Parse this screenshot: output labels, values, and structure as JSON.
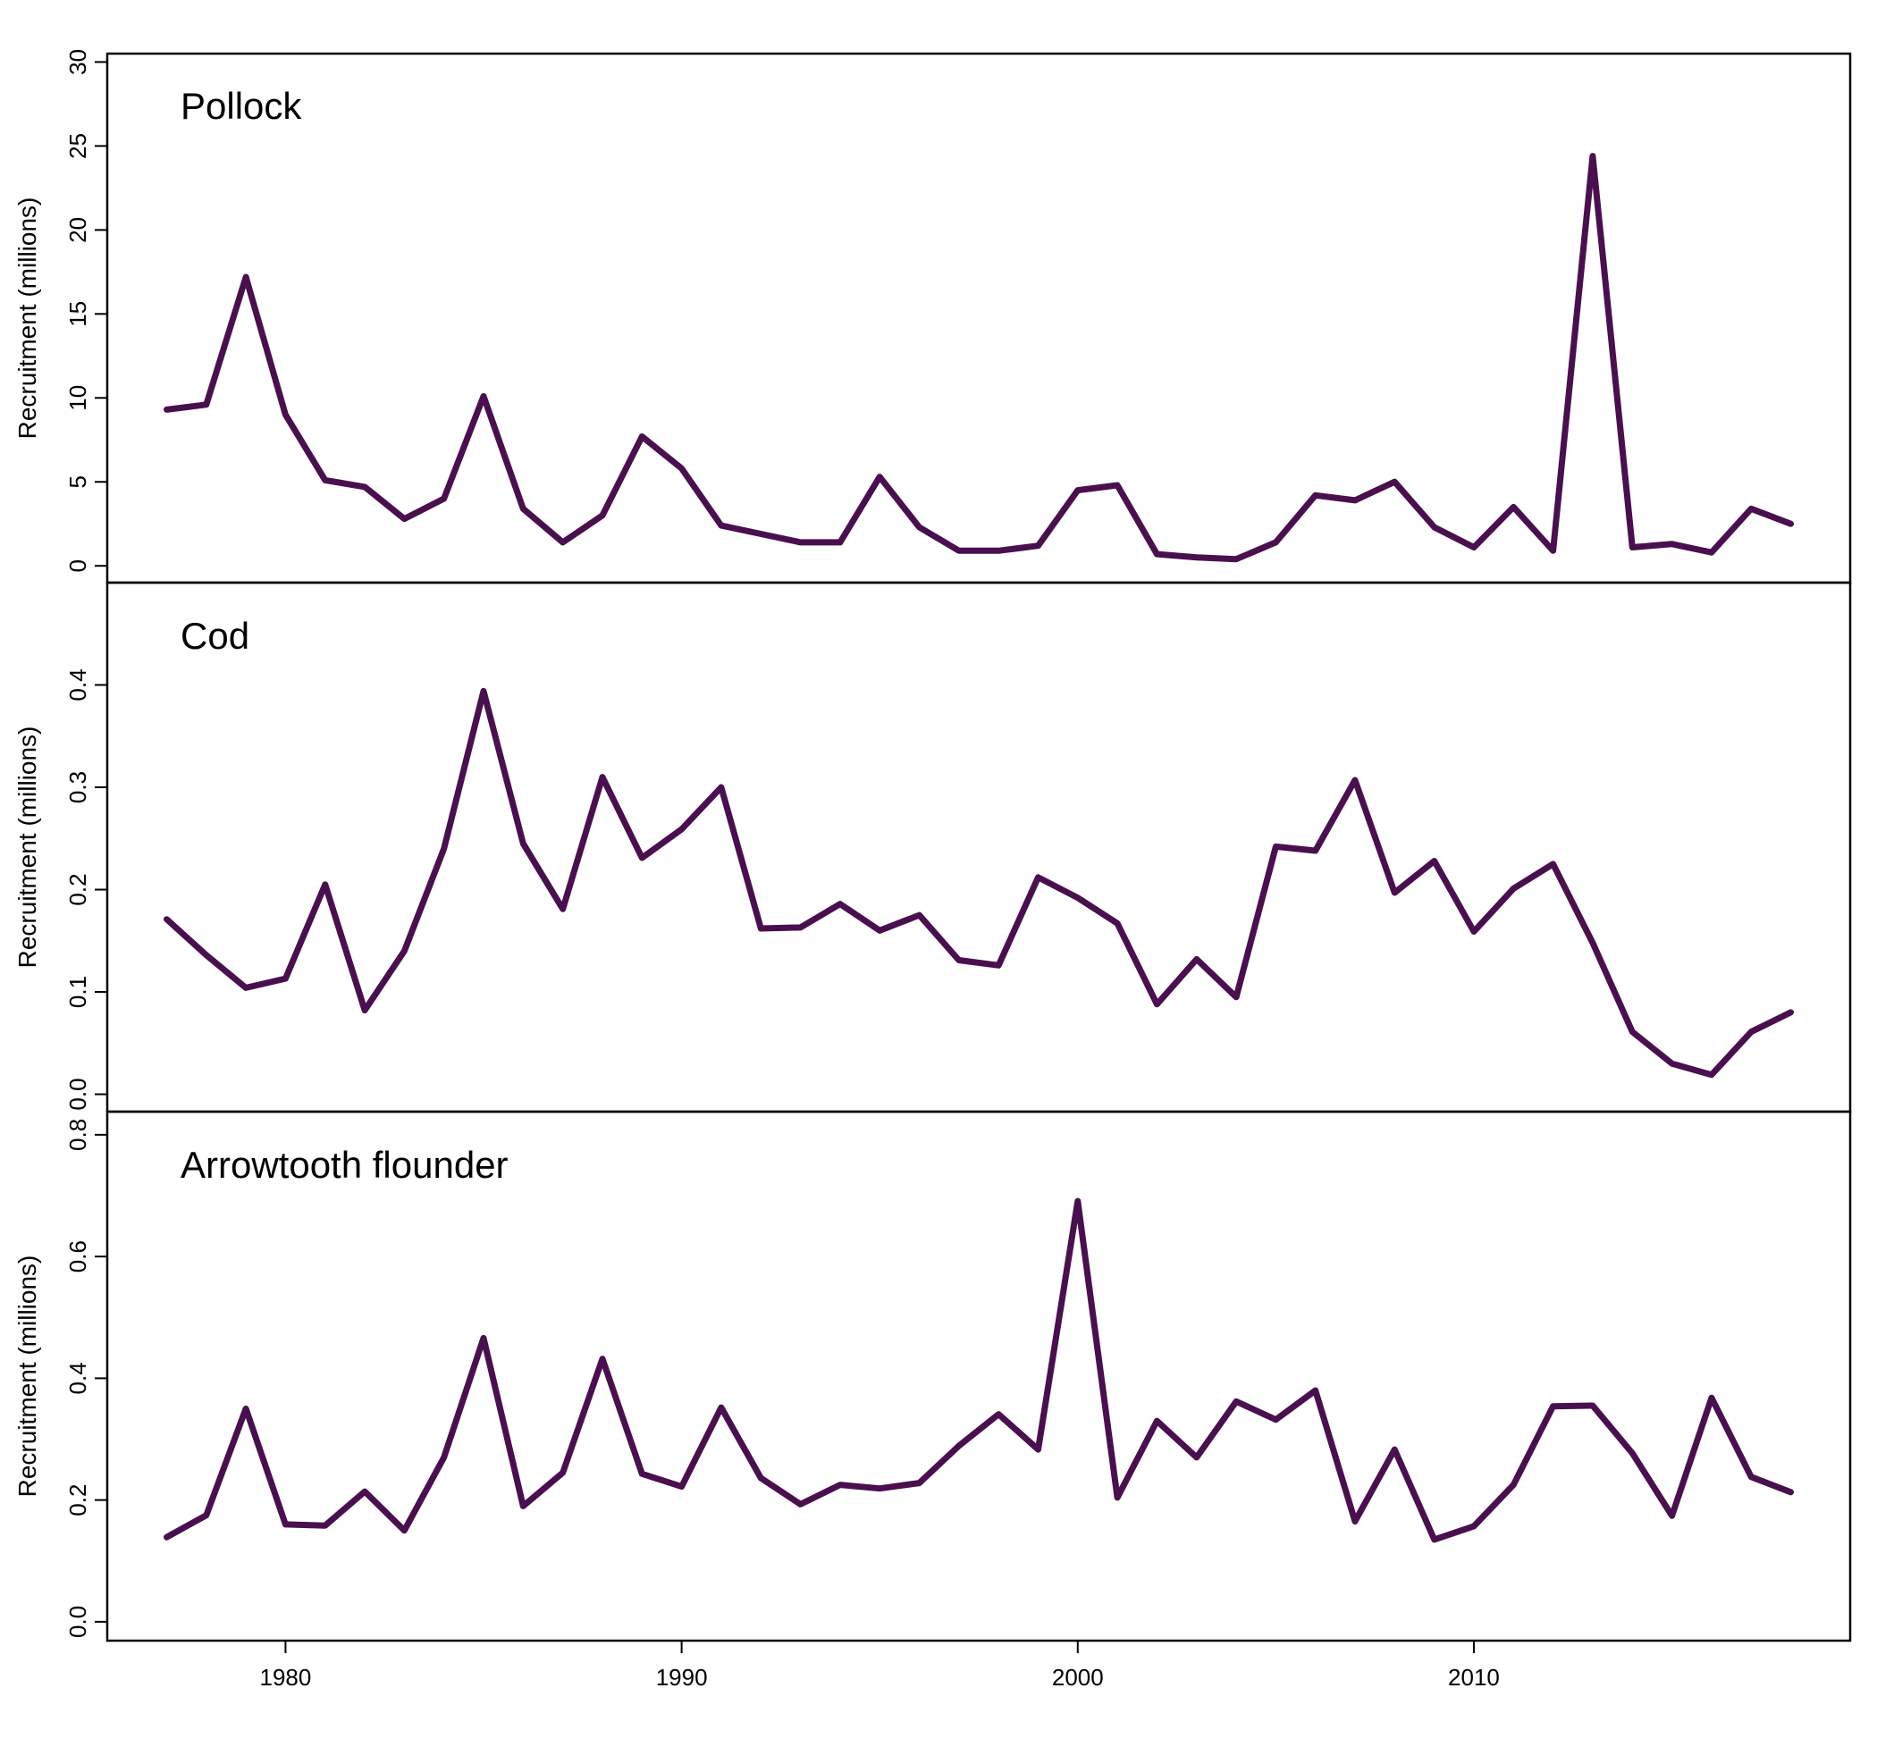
{
  "chart_data": [
    {
      "type": "line",
      "title": "Pollock",
      "ylabel": "Recruitment (millions)",
      "xlabel": "",
      "ylim": [
        -1,
        30.5
      ],
      "yticks": [
        0,
        5,
        10,
        15,
        20,
        25,
        30
      ],
      "xticks": [
        1980,
        1990,
        2000,
        2010
      ],
      "xlim": [
        1975.5,
        2019.5
      ],
      "color": "#4a0f4f",
      "x": [
        1977,
        1978,
        1979,
        1980,
        1981,
        1982,
        1983,
        1984,
        1985,
        1986,
        1987,
        1988,
        1989,
        1990,
        1991,
        1992,
        1993,
        1994,
        1995,
        1996,
        1997,
        1998,
        1999,
        2000,
        2001,
        2002,
        2003,
        2004,
        2005,
        2006,
        2007,
        2008,
        2009,
        2010,
        2011,
        2012,
        2013,
        2014,
        2015,
        2016,
        2017,
        2018
      ],
      "values": [
        9.3,
        9.6,
        17.2,
        9.0,
        5.1,
        4.7,
        2.8,
        4.0,
        10.1,
        3.4,
        1.4,
        3.0,
        7.7,
        5.8,
        2.4,
        1.9,
        1.4,
        1.4,
        5.3,
        2.3,
        0.9,
        0.9,
        1.2,
        4.5,
        4.8,
        0.7,
        0.5,
        0.4,
        1.4,
        4.2,
        3.9,
        5.0,
        2.3,
        1.1,
        3.5,
        0.9,
        24.4,
        1.1,
        1.3,
        0.8,
        3.4,
        2.5
      ]
    },
    {
      "type": "line",
      "title": "Cod",
      "ylabel": "Recruitment (millions)",
      "xlabel": "",
      "ylim": [
        -0.017,
        0.5
      ],
      "yticks": [
        0.0,
        0.1,
        0.2,
        0.3,
        0.4
      ],
      "ytick_labels": [
        "0.0",
        "0.1",
        "0.2",
        "0.3",
        "0.4"
      ],
      "xticks": [
        1980,
        1990,
        2000,
        2010
      ],
      "xlim": [
        1975.5,
        2019.5
      ],
      "color": "#4a0f4f",
      "x": [
        1977,
        1978,
        1979,
        1980,
        1981,
        1982,
        1983,
        1984,
        1985,
        1986,
        1987,
        1988,
        1989,
        1990,
        1991,
        1992,
        1993,
        1994,
        1995,
        1996,
        1997,
        1998,
        1999,
        2000,
        2001,
        2002,
        2003,
        2004,
        2005,
        2006,
        2007,
        2008,
        2009,
        2010,
        2011,
        2012,
        2013,
        2014,
        2015,
        2016,
        2017,
        2018
      ],
      "values": [
        0.171,
        0.136,
        0.104,
        0.113,
        0.205,
        0.082,
        0.14,
        0.24,
        0.394,
        0.245,
        0.181,
        0.31,
        0.231,
        0.259,
        0.3,
        0.162,
        0.163,
        0.186,
        0.16,
        0.175,
        0.131,
        0.126,
        0.212,
        0.192,
        0.167,
        0.088,
        0.132,
        0.095,
        0.242,
        0.238,
        0.307,
        0.197,
        0.228,
        0.159,
        0.201,
        0.225,
        0.148,
        0.061,
        0.03,
        0.019,
        0.061,
        0.08
      ]
    },
    {
      "type": "line",
      "title": "Arrowtooth flounder",
      "ylabel": "Recruitment (millions)",
      "xlabel": "",
      "ylim": [
        -0.031,
        0.838
      ],
      "yticks": [
        0.0,
        0.2,
        0.4,
        0.6,
        0.8
      ],
      "ytick_labels": [
        "0.0",
        "0.2",
        "0.4",
        "0.6",
        "0.8"
      ],
      "xticks": [
        1980,
        1990,
        2000,
        2010
      ],
      "xlim": [
        1975.5,
        2019.5
      ],
      "color": "#4a0f4f",
      "x": [
        1977,
        1978,
        1979,
        1980,
        1981,
        1982,
        1983,
        1984,
        1985,
        1986,
        1987,
        1988,
        1989,
        1990,
        1991,
        1992,
        1993,
        1994,
        1995,
        1996,
        1997,
        1998,
        1999,
        2000,
        2001,
        2002,
        2003,
        2004,
        2005,
        2006,
        2007,
        2008,
        2009,
        2010,
        2011,
        2012,
        2013,
        2014,
        2015,
        2016,
        2017,
        2018
      ],
      "values": [
        0.139,
        0.175,
        0.35,
        0.16,
        0.158,
        0.214,
        0.15,
        0.27,
        0.466,
        0.19,
        0.245,
        0.432,
        0.243,
        0.222,
        0.352,
        0.236,
        0.193,
        0.225,
        0.219,
        0.228,
        0.289,
        0.341,
        0.283,
        0.691,
        0.204,
        0.33,
        0.27,
        0.362,
        0.332,
        0.38,
        0.165,
        0.283,
        0.135,
        0.157,
        0.225,
        0.354,
        0.355,
        0.277,
        0.174,
        0.368,
        0.238,
        0.213
      ]
    }
  ]
}
